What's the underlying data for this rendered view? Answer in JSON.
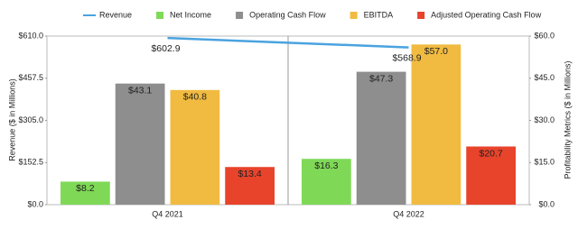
{
  "chart_data": {
    "type": "combo",
    "y_label": "Revenue ($ in Millions)",
    "y2_label": "Profitability Metrics ($ in Millions)",
    "categories": [
      "Q4 2021",
      "Q4 2022"
    ],
    "ylim": [
      0,
      610
    ],
    "yticks": [
      {
        "value": 0,
        "label": "$0.0"
      },
      {
        "value": 152.5,
        "label": "$152.5"
      },
      {
        "value": 305,
        "label": "$305.0"
      },
      {
        "value": 457.5,
        "label": "$457.5"
      },
      {
        "value": 610,
        "label": "$610.0"
      }
    ],
    "y2lim": [
      0,
      60
    ],
    "y2ticks": [
      {
        "value": 0,
        "label": "$0.0"
      },
      {
        "value": 15,
        "label": "$15.0"
      },
      {
        "value": 30,
        "label": "$30.0"
      },
      {
        "value": 45,
        "label": "$45.0"
      },
      {
        "value": 60,
        "label": "$60.0"
      }
    ],
    "legend": "top",
    "series": [
      {
        "name": "Revenue",
        "type": "line",
        "axis": "y",
        "color": "#4aa3df",
        "values": [
          602.9,
          568.9
        ],
        "value_labels": [
          "$602.9",
          "$568.9"
        ]
      },
      {
        "name": "Net Income",
        "type": "bar",
        "axis": "y2",
        "color": "#7fd957",
        "values": [
          8.2,
          16.3
        ],
        "value_labels": [
          "$8.2",
          "$16.3"
        ]
      },
      {
        "name": "Operating Cash Flow",
        "type": "bar",
        "axis": "y2",
        "color": "#8e8e8e",
        "values": [
          43.1,
          47.3
        ],
        "value_labels": [
          "$43.1",
          "$47.3"
        ]
      },
      {
        "name": "EBITDA",
        "type": "bar",
        "axis": "y2",
        "color": "#f1bb41",
        "values": [
          40.8,
          57.0
        ],
        "value_labels": [
          "$40.8",
          "$57.0"
        ]
      },
      {
        "name": "Adjusted Operating Cash Flow",
        "type": "bar",
        "axis": "y2",
        "color": "#e8432b",
        "values": [
          13.4,
          20.7
        ],
        "value_labels": [
          "$13.4",
          "$20.7"
        ]
      }
    ]
  }
}
